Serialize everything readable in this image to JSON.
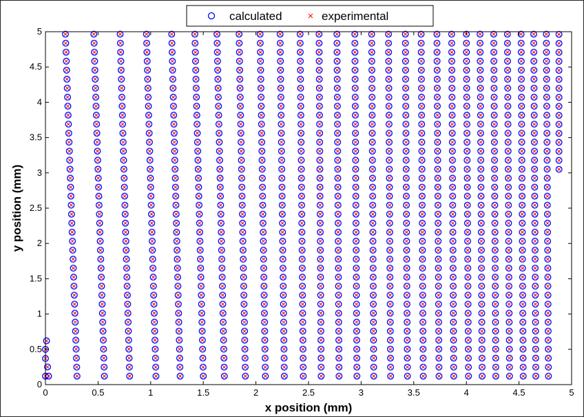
{
  "chart_data": {
    "type": "scatter",
    "xlabel": "x position (mm)",
    "ylabel": "y position (mm)",
    "xlim": [
      0,
      5
    ],
    "ylim": [
      0,
      5
    ],
    "xticks": [
      "0",
      "0.5",
      "1",
      "1.5",
      "2",
      "2.5",
      "3",
      "3.5",
      "4",
      "4.5",
      "5"
    ],
    "yticks": [
      "0",
      "0.5",
      "1",
      "1.5",
      "2",
      "2.5",
      "3",
      "3.5",
      "4",
      "4.5",
      "5"
    ],
    "grid": false,
    "legend_position": "top-center",
    "series": [
      {
        "name": "calculated",
        "marker": "circle",
        "color": "#0000ff",
        "columns": [
          {
            "x": [
              0.0,
              0.02,
              0.0,
              0.0,
              0.01,
              0.03
            ],
            "y": [
              0.12,
              0.25,
              0.37,
              0.5,
              0.62,
              0.12
            ]
          },
          {
            "x_top": 0.19,
            "x_bottom": 0.3,
            "y_start": 0.12,
            "y_end": 4.95,
            "dy": 0.1275
          },
          {
            "x_top": 0.46,
            "x_bottom": 0.56,
            "y_start": 0.12,
            "y_end": 4.95,
            "dy": 0.1275
          },
          {
            "x_top": 0.71,
            "x_bottom": 0.8,
            "y_start": 0.12,
            "y_end": 4.95,
            "dy": 0.1275
          },
          {
            "x_top": 0.96,
            "x_bottom": 1.05,
            "y_start": 0.12,
            "y_end": 4.95,
            "dy": 0.1275
          },
          {
            "x_top": 1.2,
            "x_bottom": 1.28,
            "y_start": 0.12,
            "y_end": 4.95,
            "dy": 0.1275
          },
          {
            "x_top": 1.42,
            "x_bottom": 1.5,
            "y_start": 0.12,
            "y_end": 4.95,
            "dy": 0.1275
          },
          {
            "x_top": 1.63,
            "x_bottom": 1.7,
            "y_start": 0.12,
            "y_end": 4.95,
            "dy": 0.1275
          },
          {
            "x_top": 1.84,
            "x_bottom": 1.9,
            "y_start": 0.12,
            "y_end": 4.95,
            "dy": 0.1275
          },
          {
            "x_top": 2.04,
            "x_bottom": 2.09,
            "y_start": 0.12,
            "y_end": 4.95,
            "dy": 0.1275
          },
          {
            "x_top": 2.23,
            "x_bottom": 2.27,
            "y_start": 0.12,
            "y_end": 4.95,
            "dy": 0.1275
          },
          {
            "x_top": 2.42,
            "x_bottom": 2.45,
            "y_start": 0.12,
            "y_end": 4.95,
            "dy": 0.1275
          },
          {
            "x_top": 2.6,
            "x_bottom": 2.62,
            "y_start": 0.12,
            "y_end": 4.95,
            "dy": 0.1275
          },
          {
            "x_top": 2.77,
            "x_bottom": 2.79,
            "y_start": 0.12,
            "y_end": 4.95,
            "dy": 0.1275
          },
          {
            "x_top": 2.94,
            "x_bottom": 2.96,
            "y_start": 0.12,
            "y_end": 4.95,
            "dy": 0.1275
          },
          {
            "x_top": 3.1,
            "x_bottom": 3.12,
            "y_start": 0.12,
            "y_end": 4.95,
            "dy": 0.1275
          },
          {
            "x_top": 3.26,
            "x_bottom": 3.28,
            "y_start": 0.12,
            "y_end": 4.95,
            "dy": 0.1275
          },
          {
            "x_top": 3.42,
            "x_bottom": 3.44,
            "y_start": 0.12,
            "y_end": 4.95,
            "dy": 0.1275
          },
          {
            "x_top": 3.57,
            "x_bottom": 3.59,
            "y_start": 0.12,
            "y_end": 4.95,
            "dy": 0.1275
          },
          {
            "x_top": 3.72,
            "x_bottom": 3.74,
            "y_start": 0.12,
            "y_end": 4.95,
            "dy": 0.1275
          },
          {
            "x_top": 3.86,
            "x_bottom": 3.88,
            "y_start": 0.12,
            "y_end": 4.95,
            "dy": 0.1275
          },
          {
            "x_top": 4.0,
            "x_bottom": 4.02,
            "y_start": 0.12,
            "y_end": 4.95,
            "dy": 0.1275
          },
          {
            "x_top": 4.13,
            "x_bottom": 4.15,
            "y_start": 0.12,
            "y_end": 4.95,
            "dy": 0.1275
          },
          {
            "x_top": 4.26,
            "x_bottom": 4.28,
            "y_start": 0.12,
            "y_end": 4.95,
            "dy": 0.1275
          },
          {
            "x_top": 4.39,
            "x_bottom": 4.41,
            "y_start": 0.12,
            "y_end": 4.95,
            "dy": 0.1275
          },
          {
            "x_top": 4.52,
            "x_bottom": 4.54,
            "y_start": 0.12,
            "y_end": 4.95,
            "dy": 0.1275
          },
          {
            "x_top": 4.64,
            "x_bottom": 4.66,
            "y_start": 0.12,
            "y_end": 4.95,
            "dy": 0.1275
          },
          {
            "x_top": 4.76,
            "x_bottom": 4.78,
            "y_start": 0.12,
            "y_end": 4.95,
            "dy": 0.1275
          },
          {
            "x_top": 4.88,
            "x_bottom": 4.88,
            "y_start": 3.05,
            "y_end": 4.95,
            "dy": 0.1275
          }
        ]
      },
      {
        "name": "experimental",
        "marker": "x",
        "color": "#ff0000",
        "same_positions_as": "calculated"
      }
    ]
  }
}
